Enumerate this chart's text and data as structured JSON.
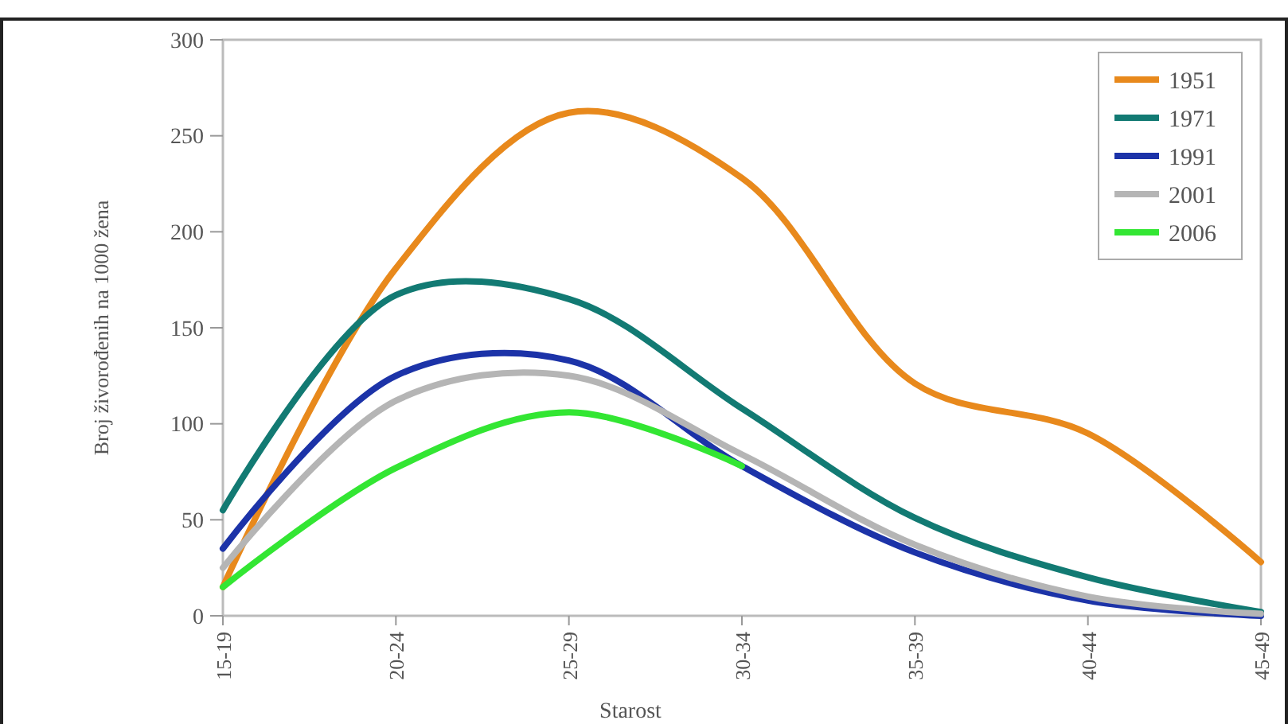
{
  "chart_data": {
    "type": "line",
    "xlabel": "Starost",
    "ylabel": "Broj živorođenih na 1000 žena",
    "categories": [
      "15-19",
      "20-24",
      "25-29",
      "30-34",
      "35-39",
      "40-44",
      "45-49"
    ],
    "series": [
      {
        "name": "1951",
        "color": "#e8891c",
        "values": [
          15,
          181,
          262,
          228,
          121,
          95,
          28
        ]
      },
      {
        "name": "1971",
        "color": "#127a73",
        "values": [
          55,
          167,
          165,
          108,
          51,
          20,
          2
        ]
      },
      {
        "name": "1991",
        "color": "#1c33a8",
        "values": [
          35,
          125,
          133,
          78,
          33,
          8,
          0
        ]
      },
      {
        "name": "2001",
        "color": "#b5b5b5",
        "values": [
          25,
          112,
          125,
          84,
          37,
          10,
          1
        ]
      },
      {
        "name": "2006",
        "color": "#33e633",
        "values": [
          15,
          77,
          106,
          78,
          null,
          null,
          null
        ]
      }
    ],
    "ylim": [
      0,
      300
    ],
    "yticks": [
      0,
      50,
      100,
      150,
      200,
      250,
      300
    ],
    "legend": "top right",
    "grid": false,
    "marker": "none",
    "line_style": "solid"
  }
}
